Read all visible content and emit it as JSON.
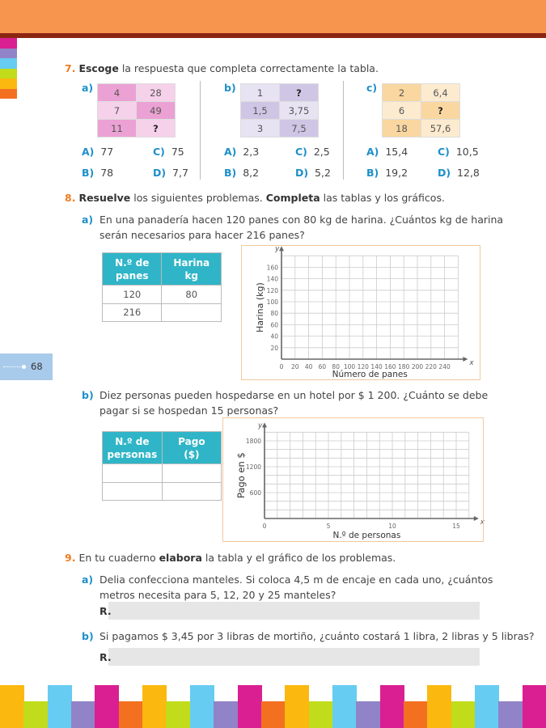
{
  "page_number": "68",
  "colors": {
    "header": "#F7954F",
    "header_line": "#8B2512",
    "accent_orange": "#F07D22",
    "label_blue": "#1E8FC9",
    "table_header": "#2FB5C7",
    "page_tab": "#A9CBEB"
  },
  "side_tabs": [
    "#DA1F92",
    "#9183C7",
    "#66CCF1",
    "#C1DC1B",
    "#FBB80F",
    "#F37021"
  ],
  "bottom_bars": [
    "#FBB80F",
    "#C1DC1B",
    "#66CCF1",
    "#9183C7",
    "#DA1F92",
    "#F37021"
  ],
  "q7": {
    "num": "7.",
    "bold": "Escoge",
    "text": " la respuesta que completa correctamente la tabla.",
    "parts": [
      {
        "label": "a)",
        "rows": [
          [
            "4",
            "28"
          ],
          [
            "7",
            "49"
          ],
          [
            "11",
            "?"
          ]
        ],
        "colors": [
          [
            "#EBA1D3",
            "#F6D1EA"
          ],
          [
            "#F6D1EA",
            "#EBA1D3"
          ],
          [
            "#EBA1D3",
            "#F6D1EA"
          ]
        ],
        "options": [
          [
            "A)",
            "77"
          ],
          [
            "C)",
            "75"
          ],
          [
            "B)",
            "78"
          ],
          [
            "D)",
            "7,7"
          ]
        ]
      },
      {
        "label": "b)",
        "rows": [
          [
            "1",
            "?"
          ],
          [
            "1,5",
            "3,75"
          ],
          [
            "3",
            "7,5"
          ]
        ],
        "colors": [
          [
            "#E7E3F3",
            "#CFC6E6"
          ],
          [
            "#CFC6E6",
            "#E7E3F3"
          ],
          [
            "#E7E3F3",
            "#CFC6E6"
          ]
        ],
        "options": [
          [
            "A)",
            "2,3"
          ],
          [
            "C)",
            "2,5"
          ],
          [
            "B)",
            "8,2"
          ],
          [
            "D)",
            "5,2"
          ]
        ]
      },
      {
        "label": "c)",
        "rows": [
          [
            "2",
            "6,4"
          ],
          [
            "6",
            "?"
          ],
          [
            "18",
            "57,6"
          ]
        ],
        "colors": [
          [
            "#FAD7A0",
            "#FDEBD0"
          ],
          [
            "#FDEBD0",
            "#FAD7A0"
          ],
          [
            "#FAD7A0",
            "#FDEBD0"
          ]
        ],
        "options": [
          [
            "A)",
            "15,4"
          ],
          [
            "C)",
            "10,5"
          ],
          [
            "B)",
            "19,2"
          ],
          [
            "D)",
            "12,8"
          ]
        ]
      }
    ]
  },
  "q8": {
    "num": "8.",
    "bold1": "Resuelve",
    "text1": " los siguientes problemas. ",
    "bold2": "Completa",
    "text2": " las tablas y los gráficos.",
    "a": {
      "label": "a)",
      "line1": "En una panadería hacen 120 panes con 80 kg de harina. ¿Cuántos kg de harina",
      "line2": "serán necesarios para hacer 216 panes?",
      "table": {
        "headers": [
          [
            "N.º de",
            "panes"
          ],
          [
            "Harina",
            "kg"
          ]
        ],
        "rows": [
          [
            "120",
            "80"
          ],
          [
            "216",
            ""
          ]
        ]
      }
    },
    "b": {
      "label": "b)",
      "line1": "Diez personas pueden hospedarse en un hotel por $ 1 200. ¿Cuánto se debe",
      "line2": "pagar si se hospedan 15 personas?",
      "table": {
        "headers": [
          [
            "N.º de",
            "personas"
          ],
          [
            "Pago",
            "($)"
          ]
        ],
        "rows": [
          [
            "",
            ""
          ],
          [
            "",
            ""
          ]
        ]
      }
    }
  },
  "chart_data": [
    {
      "type": "line",
      "series": [],
      "xlabel": "Número de panes",
      "ylabel": "Harina (kg)",
      "x_axis_letter": "x",
      "y_axis_letter": "y",
      "xticks": [
        "0",
        "20",
        "40",
        "60",
        "80",
        "100",
        "120",
        "140",
        "160",
        "180",
        "200",
        "220",
        "240"
      ],
      "yticks": [
        "20",
        "40",
        "60",
        "80",
        "100",
        "120",
        "140",
        "160"
      ],
      "xlim": [
        0,
        260
      ],
      "ylim": [
        0,
        180
      ],
      "grid": true
    },
    {
      "type": "line",
      "series": [],
      "xlabel": "N.º de  personas",
      "ylabel": "Pago en $",
      "x_axis_letter": "x",
      "y_axis_letter": "y",
      "xticks": [
        "0",
        "5",
        "10",
        "15"
      ],
      "yticks": [
        "600",
        "1200",
        "1800"
      ],
      "xlim": [
        0,
        16
      ],
      "ylim": [
        0,
        2000
      ],
      "grid": true
    }
  ],
  "q9": {
    "num": "9.",
    "text1": "En tu cuaderno ",
    "bold": "elabora",
    "text2": " la tabla y el gráfico de los problemas.",
    "a": {
      "label": "a)",
      "line1": "Delia confecciona manteles. Si coloca 4,5 m de encaje en cada uno, ¿cuántos",
      "line2": "metros necesita para 5, 12, 20 y 25 manteles?",
      "answer_label": "R."
    },
    "b": {
      "label": "b)",
      "line1": "Si pagamos $ 3,45 por 3 libras de mortiño, ¿cuánto costará 1 libra, 2 libras y 5 libras?",
      "answer_label": "R."
    }
  }
}
